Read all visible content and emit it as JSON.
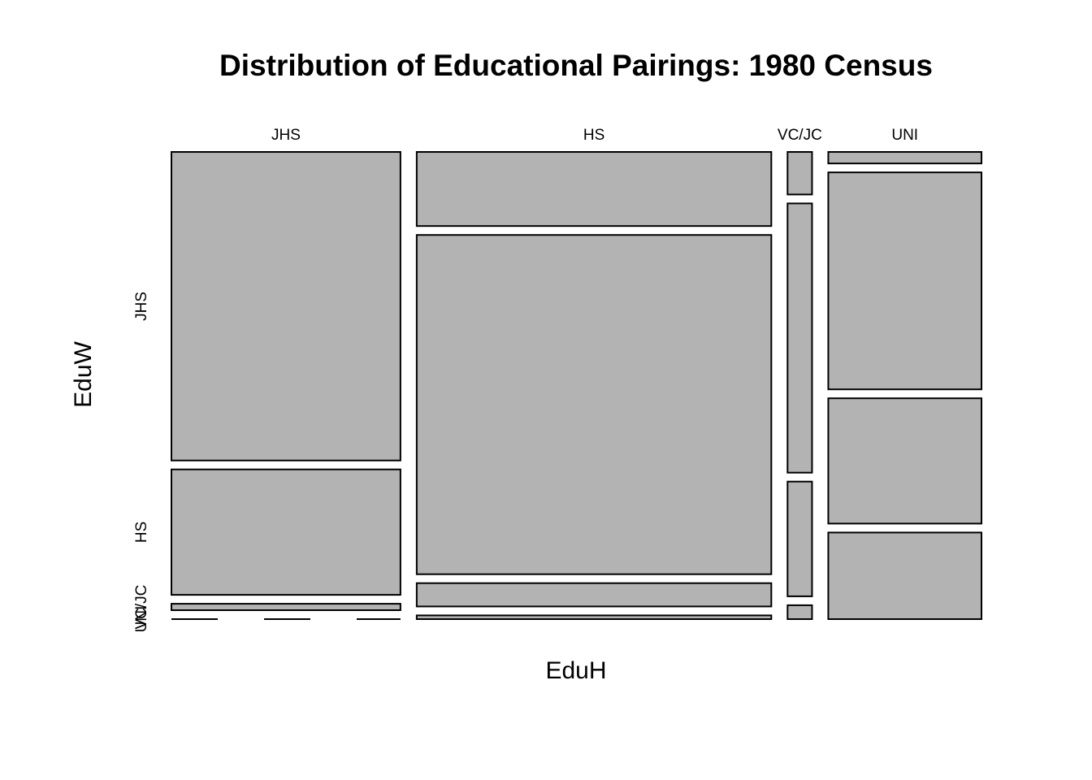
{
  "chart_data": {
    "type": "mosaic",
    "title": "Distribution of Educational Pairings: 1980 Census",
    "xlabel": "EduH",
    "ylabel": "EduW",
    "x_categories": [
      "JHS",
      "HS",
      "VC/JC",
      "UNI"
    ],
    "y_categories": [
      "JHS",
      "HS",
      "VC/JC",
      "UNI"
    ],
    "y_tick_labels": [
      "JHS",
      "HS",
      "VC/JC",
      "UNI"
    ],
    "x_proportions": [
      0.29,
      0.449,
      0.031,
      0.194
    ],
    "y_proportions_within_x": [
      [
        0.674,
        0.274,
        0.014,
        0.0
      ],
      [
        0.159,
        0.728,
        0.05,
        0.008
      ],
      [
        0.092,
        0.582,
        0.248,
        0.03
      ],
      [
        0.025,
        0.471,
        0.272,
        0.188
      ]
    ],
    "fill_color": "#b3b3b3"
  }
}
